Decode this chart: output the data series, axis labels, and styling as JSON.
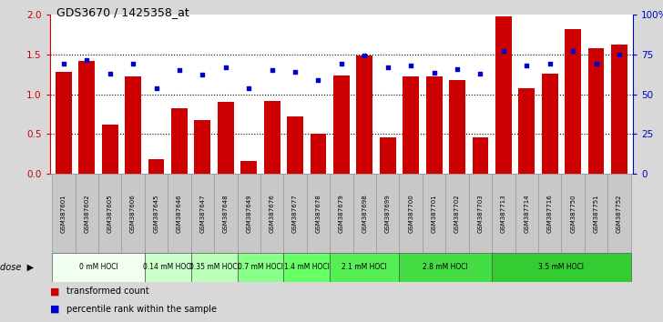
{
  "title": "GDS3670 / 1425358_at",
  "samples": [
    "GSM387601",
    "GSM387602",
    "GSM387605",
    "GSM387606",
    "GSM387645",
    "GSM387646",
    "GSM387647",
    "GSM387648",
    "GSM387649",
    "GSM387676",
    "GSM387677",
    "GSM387678",
    "GSM387679",
    "GSM387698",
    "GSM387699",
    "GSM387700",
    "GSM387701",
    "GSM387702",
    "GSM387703",
    "GSM387713",
    "GSM387714",
    "GSM387716",
    "GSM387750",
    "GSM387751",
    "GSM387752"
  ],
  "bar_values": [
    1.28,
    1.42,
    0.62,
    1.22,
    0.18,
    0.82,
    0.68,
    0.9,
    0.16,
    0.92,
    0.72,
    0.5,
    1.24,
    1.48,
    0.46,
    1.22,
    1.22,
    1.18,
    0.46,
    1.98,
    1.08,
    1.26,
    1.82,
    1.58,
    1.62
  ],
  "dot_values": [
    1.38,
    1.43,
    1.26,
    1.38,
    1.08,
    1.3,
    1.25,
    1.34,
    1.08,
    1.3,
    1.28,
    1.18,
    1.38,
    1.48,
    1.34,
    1.36,
    1.27,
    1.32,
    1.26,
    1.54,
    1.36,
    1.38,
    1.54,
    1.38,
    1.5
  ],
  "bar_color": "#cc0000",
  "dot_color": "#0000cc",
  "ylim": [
    0,
    2.0
  ],
  "yticks": [
    0,
    0.5,
    1.0,
    1.5,
    2.0
  ],
  "y2ticks": [
    0,
    25,
    50,
    75,
    100
  ],
  "y2ticklabels": [
    "0",
    "25",
    "50",
    "75",
    "100%"
  ],
  "groups": [
    {
      "label": "0 mM HOCl",
      "start": 0,
      "end": 4,
      "color": "#f0fff0"
    },
    {
      "label": "0.14 mM HOCl",
      "start": 4,
      "end": 6,
      "color": "#ccffcc"
    },
    {
      "label": "0.35 mM HOCl",
      "start": 6,
      "end": 8,
      "color": "#bbffbb"
    },
    {
      "label": "0.7 mM HOCl",
      "start": 8,
      "end": 10,
      "color": "#88ff88"
    },
    {
      "label": "1.4 mM HOCl",
      "start": 10,
      "end": 12,
      "color": "#66ff66"
    },
    {
      "label": "2.1 mM HOCl",
      "start": 12,
      "end": 15,
      "color": "#55ee55"
    },
    {
      "label": "2.8 mM HOCl",
      "start": 15,
      "end": 19,
      "color": "#44dd44"
    },
    {
      "label": "3.5 mM HOCl",
      "start": 19,
      "end": 25,
      "color": "#33cc33"
    }
  ],
  "dose_label": "dose",
  "legend_bar": "transformed count",
  "legend_dot": "percentile rank within the sample",
  "title_fontsize": 9,
  "axis_label_color_left": "#cc0000",
  "axis_label_color_right": "#0000cc",
  "bg_plot": "#ffffff",
  "bg_figure": "#d8d8d8",
  "cell_color": "#c8c8c8"
}
